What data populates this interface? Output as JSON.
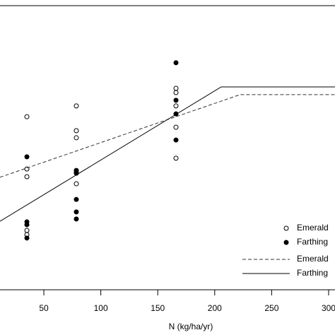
{
  "chart_data": {
    "type": "scatter-lines",
    "x_label": "N (kg/ha/yr)",
    "xlim": [
      11.5,
      305.6
    ],
    "xticks": [
      50,
      100,
      150,
      200,
      250,
      300
    ],
    "ylim": [
      0,
      100
    ],
    "series": [
      {
        "name": "Emerald",
        "kind": "points",
        "marker": "open",
        "color": "#000000",
        "x": [
          35.1,
          35.1,
          35.1,
          35.1,
          35.1,
          78.5,
          78.5,
          78.5,
          78.5,
          78.5,
          166,
          166,
          166,
          166,
          166
        ],
        "values": [
          60.9,
          42.5,
          39.8,
          20.9,
          19.4,
          64.7,
          56.0,
          53.5,
          41.0,
          37.3,
          70.9,
          69.4,
          64.7,
          57.2,
          46.3
        ]
      },
      {
        "name": "Farthing",
        "kind": "points",
        "marker": "filled",
        "color": "#000000",
        "x": [
          35.1,
          35.1,
          35.1,
          35.1,
          78.5,
          78.5,
          78.5,
          78.5,
          78.5,
          166,
          166,
          166,
          166
        ],
        "values": [
          46.8,
          23.9,
          22.9,
          18.2,
          42.0,
          41.3,
          31.8,
          27.4,
          24.9,
          79.9,
          66.7,
          61.9,
          52.7
        ]
      },
      {
        "name": "Emerald",
        "kind": "line",
        "dash": true,
        "color": "#333333",
        "x": [
          11.5,
          222.4,
          305.6
        ],
        "values": [
          39.6,
          68.7,
          68.7
        ]
      },
      {
        "name": "Farthing",
        "kind": "line",
        "dash": false,
        "color": "#000000",
        "x": [
          11.5,
          205.7,
          305.6
        ],
        "values": [
          24.1,
          71.4,
          71.4
        ]
      }
    ]
  }
}
